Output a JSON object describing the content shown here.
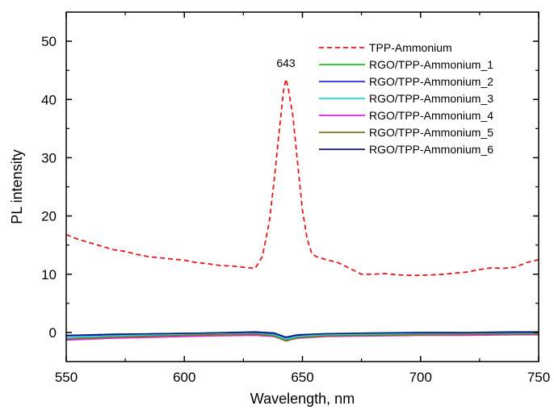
{
  "chart_data": {
    "type": "line",
    "xlabel": "Wavelength, nm",
    "ylabel": "PL intensity",
    "xlim": [
      550,
      750
    ],
    "ylim": [
      -5,
      55
    ],
    "xticks": [
      550,
      600,
      650,
      700,
      750
    ],
    "yticks": [
      0,
      10,
      20,
      30,
      40,
      50
    ],
    "legend_position": "top-right",
    "annotations": [
      {
        "text": "643",
        "x": 643,
        "y": 46
      }
    ],
    "series": [
      {
        "name": "TPP-Ammonium",
        "color": "#e8141b",
        "dash": "dashed",
        "x": [
          550,
          555,
          560,
          565,
          570,
          575,
          580,
          585,
          590,
          595,
          600,
          605,
          610,
          615,
          620,
          625,
          630,
          633,
          636,
          638,
          640,
          642,
          643,
          644,
          646,
          648,
          650,
          652,
          654,
          656,
          660,
          665,
          670,
          675,
          680,
          685,
          690,
          695,
          700,
          705,
          710,
          715,
          720,
          725,
          730,
          735,
          740,
          745,
          750
        ],
        "y": [
          16.8,
          16.0,
          15.4,
          14.8,
          14.2,
          13.9,
          13.4,
          13.0,
          12.8,
          12.6,
          12.4,
          12.0,
          11.8,
          11.5,
          11.4,
          11.2,
          11.0,
          13.0,
          19.0,
          26.0,
          34.0,
          41.5,
          43.5,
          42.0,
          37.0,
          29.0,
          21.0,
          16.0,
          13.5,
          13.0,
          12.5,
          12.0,
          11.0,
          10.0,
          10.0,
          10.1,
          9.9,
          9.8,
          9.8,
          9.9,
          10.0,
          10.2,
          10.4,
          10.8,
          11.1,
          11.0,
          11.2,
          12.0,
          12.5
        ]
      },
      {
        "name": "RGO/TPP-Ammonium_1",
        "color": "#22c322",
        "dash": "solid",
        "x": [
          550,
          570,
          590,
          610,
          630,
          638,
          643,
          648,
          660,
          680,
          700,
          720,
          740,
          750
        ],
        "y": [
          -1.0,
          -0.7,
          -0.5,
          -0.4,
          -0.3,
          -0.5,
          -1.2,
          -0.8,
          -0.5,
          -0.4,
          -0.4,
          -0.3,
          -0.3,
          -0.3
        ]
      },
      {
        "name": "RGO/TPP-Ammonium_2",
        "color": "#1f2bd6",
        "dash": "solid",
        "x": [
          550,
          570,
          590,
          610,
          630,
          638,
          643,
          648,
          660,
          680,
          700,
          720,
          740,
          750
        ],
        "y": [
          -0.6,
          -0.4,
          -0.2,
          -0.1,
          0.0,
          -0.2,
          -0.9,
          -0.5,
          -0.3,
          -0.2,
          -0.1,
          -0.1,
          0.0,
          0.0
        ]
      },
      {
        "name": "RGO/TPP-Ammonium_3",
        "color": "#17d9e3",
        "dash": "solid",
        "x": [
          550,
          570,
          590,
          610,
          630,
          638,
          643,
          648,
          660,
          680,
          700,
          720,
          740,
          750
        ],
        "y": [
          -0.9,
          -0.6,
          -0.4,
          -0.3,
          -0.2,
          -0.4,
          -1.1,
          -0.7,
          -0.4,
          -0.3,
          -0.3,
          -0.2,
          -0.2,
          -0.2
        ]
      },
      {
        "name": "RGO/TPP-Ammonium_4",
        "color": "#e31ee3",
        "dash": "solid",
        "x": [
          550,
          570,
          590,
          610,
          630,
          638,
          643,
          648,
          660,
          680,
          700,
          720,
          740,
          750
        ],
        "y": [
          -1.3,
          -1.0,
          -0.8,
          -0.6,
          -0.5,
          -0.7,
          -1.4,
          -1.0,
          -0.7,
          -0.6,
          -0.5,
          -0.5,
          -0.4,
          -0.4
        ]
      },
      {
        "name": "RGO/TPP-Ammonium_5",
        "color": "#7a7a14",
        "dash": "solid",
        "x": [
          550,
          570,
          590,
          610,
          630,
          638,
          643,
          648,
          660,
          680,
          700,
          720,
          740,
          750
        ],
        "y": [
          -1.1,
          -0.8,
          -0.6,
          -0.4,
          -0.3,
          -0.6,
          -1.5,
          -0.9,
          -0.6,
          -0.5,
          -0.4,
          -0.3,
          -0.3,
          -0.3
        ]
      },
      {
        "name": "RGO/TPP-Ammonium_6",
        "color": "#0c1a7a",
        "dash": "solid",
        "x": [
          550,
          570,
          590,
          610,
          630,
          638,
          643,
          648,
          660,
          680,
          700,
          720,
          740,
          750
        ],
        "y": [
          -0.5,
          -0.3,
          -0.2,
          -0.1,
          0.1,
          -0.1,
          -0.8,
          -0.4,
          -0.2,
          -0.1,
          0.0,
          0.0,
          0.1,
          0.1
        ]
      }
    ]
  }
}
